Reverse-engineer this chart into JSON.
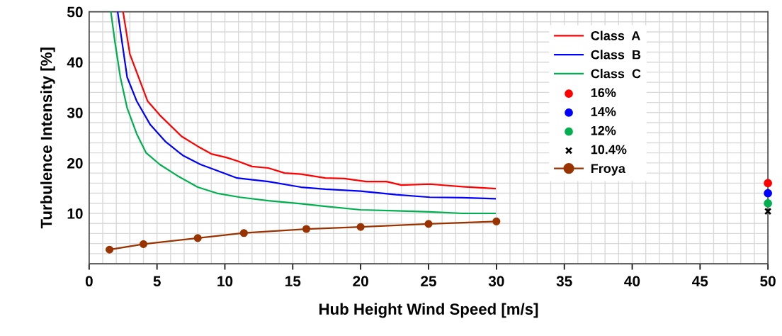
{
  "chart_data": {
    "type": "line",
    "xlabel": "Hub Height Wind Speed [m/s]",
    "ylabel": "Turbulence Intensity [%]",
    "xlim": [
      0,
      50
    ],
    "xticks": [
      0,
      5,
      10,
      15,
      20,
      25,
      30,
      35,
      40,
      45,
      50
    ],
    "ylim": [
      0,
      50
    ],
    "yticks": [
      10,
      20,
      30,
      40,
      50
    ],
    "grid": true,
    "legend": "top right",
    "series": [
      {
        "name": "Class  A",
        "color": "#ff0000",
        "marker": "none",
        "x": [
          2.5,
          3.0,
          4.3,
          5.2,
          6.8,
          8.0,
          9.0,
          10.1,
          10.9,
          12.0,
          13.2,
          14.4,
          15.6,
          17.4,
          18.8,
          20.4,
          21.9,
          23.0,
          25.1,
          27.5,
          29.9
        ],
        "values": [
          50,
          41.6,
          32.3,
          29.5,
          25.3,
          23.3,
          21.8,
          21.1,
          20.4,
          19.3,
          19.0,
          18.0,
          17.8,
          17.0,
          16.9,
          16.3,
          16.3,
          15.6,
          15.8,
          15.3,
          14.9
        ]
      },
      {
        "name": "Class  B",
        "color": "#0000ff",
        "marker": "none",
        "x": [
          2.1,
          2.8,
          3.5,
          4.5,
          5.6,
          6.9,
          8.2,
          9.4,
          10.9,
          13.2,
          15.6,
          17.4,
          20.0,
          22.6,
          25.1,
          27.5,
          29.9
        ],
        "values": [
          50,
          37.0,
          32.3,
          27.6,
          24.3,
          21.5,
          19.7,
          18.5,
          17.0,
          16.3,
          15.2,
          14.8,
          14.4,
          13.7,
          13.2,
          13.1,
          12.9
        ]
      },
      {
        "name": "Class  C",
        "color": "#00b050",
        "marker": "none",
        "x": [
          1.6,
          1.9,
          2.3,
          2.8,
          3.5,
          4.2,
          5.2,
          6.6,
          8.0,
          9.4,
          11.1,
          13.2,
          15.6,
          17.4,
          20.0,
          22.6,
          25.1,
          27.5,
          29.9
        ],
        "values": [
          50,
          44,
          37.0,
          30.9,
          25.8,
          22.0,
          19.7,
          17.3,
          15.2,
          14.0,
          13.2,
          12.5,
          11.9,
          11.4,
          10.7,
          10.5,
          10.3,
          10.0,
          10.0
        ]
      },
      {
        "name": "16%",
        "type": "scatter",
        "color": "#ff0000",
        "marker": "circle",
        "x": [
          50
        ],
        "values": [
          16
        ]
      },
      {
        "name": "14%",
        "type": "scatter",
        "color": "#0000ff",
        "marker": "circle",
        "x": [
          50
        ],
        "values": [
          14
        ]
      },
      {
        "name": "12%",
        "type": "scatter",
        "color": "#00b050",
        "marker": "circle",
        "x": [
          50
        ],
        "values": [
          12
        ]
      },
      {
        "name": "10.4%",
        "type": "scatter",
        "color": "#000000",
        "marker": "cross",
        "x": [
          50
        ],
        "values": [
          10.4
        ]
      },
      {
        "name": "Froya",
        "color": "#993300",
        "marker": "circle",
        "x": [
          1.5,
          4.0,
          8.0,
          11.4,
          16.0,
          20.0,
          25.0,
          30.0
        ],
        "values": [
          2.8,
          3.9,
          5.1,
          6.1,
          6.9,
          7.3,
          7.9,
          8.4
        ]
      }
    ]
  }
}
